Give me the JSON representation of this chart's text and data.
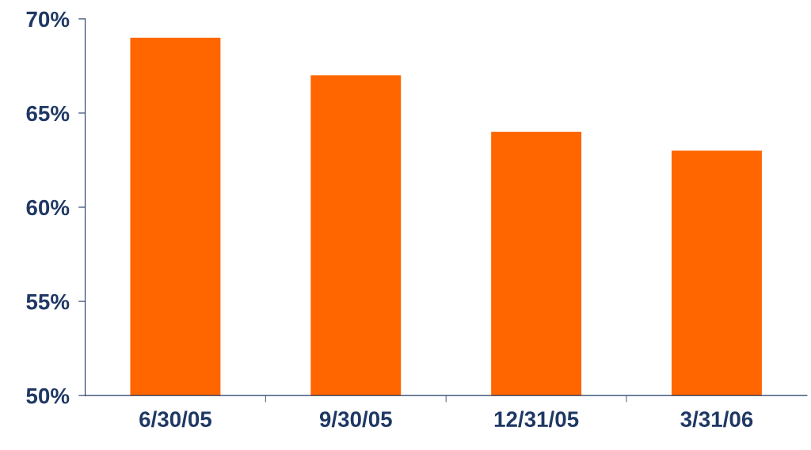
{
  "chart_data": {
    "type": "bar",
    "categories": [
      "6/30/05",
      "9/30/05",
      "12/31/05",
      "3/31/06"
    ],
    "values": [
      69,
      67,
      64,
      63
    ],
    "color": "#ff6600",
    "ylim": [
      50,
      70
    ],
    "yticks": [
      {
        "value": 50,
        "label": "50%"
      },
      {
        "value": 55,
        "label": "55%"
      },
      {
        "value": 60,
        "label": "60%"
      },
      {
        "value": 65,
        "label": "65%"
      },
      {
        "value": 70,
        "label": "70%"
      }
    ],
    "grid": false
  }
}
